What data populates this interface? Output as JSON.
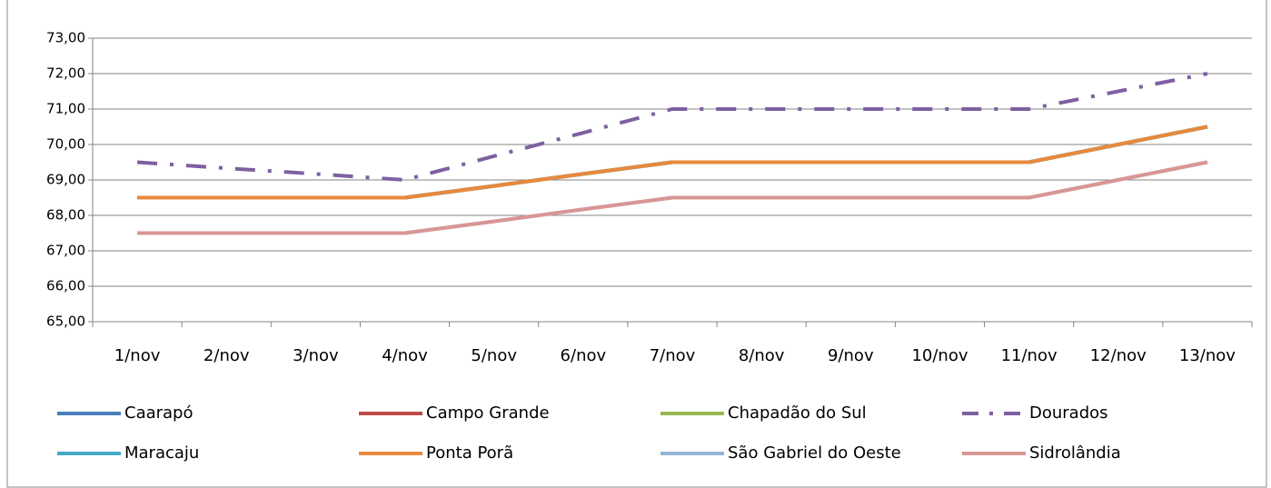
{
  "chart_data": {
    "type": "line",
    "categories": [
      "1/nov",
      "2/nov",
      "3/nov",
      "4/nov",
      "5/nov",
      "6/nov",
      "7/nov",
      "8/nov",
      "9/nov",
      "10/nov",
      "11/nov",
      "12/nov",
      "13/nov"
    ],
    "series": [
      {
        "name": "Caarapó",
        "color": "#4a7ebb",
        "values": [
          68.5,
          68.5,
          68.5,
          68.5,
          68.83,
          69.17,
          69.5,
          69.5,
          69.5,
          69.5,
          69.5,
          70.0,
          70.5
        ]
      },
      {
        "name": "Campo Grande",
        "color": "#be4b48",
        "values": [
          68.5,
          68.5,
          68.5,
          68.5,
          68.83,
          69.17,
          69.5,
          69.5,
          69.5,
          69.5,
          69.5,
          70.0,
          70.5
        ]
      },
      {
        "name": "Chapadão do Sul",
        "color": "#98b954",
        "values": [
          68.5,
          68.5,
          68.5,
          68.5,
          68.83,
          69.17,
          69.5,
          69.5,
          69.5,
          69.5,
          69.5,
          70.0,
          70.5
        ]
      },
      {
        "name": "Dourados",
        "color": "#7d60a0",
        "line_style": "dash-dot",
        "values": [
          69.5,
          69.33,
          69.17,
          69.0,
          69.67,
          70.33,
          71.0,
          71.0,
          71.0,
          71.0,
          71.0,
          71.5,
          72.0
        ]
      },
      {
        "name": "Maracaju",
        "color": "#46aac5",
        "values": [
          68.5,
          68.5,
          68.5,
          68.5,
          68.83,
          69.17,
          69.5,
          69.5,
          69.5,
          69.5,
          69.5,
          70.0,
          70.5
        ]
      },
      {
        "name": "Ponta Porã",
        "color": "#e8893e",
        "values": [
          68.5,
          68.5,
          68.5,
          68.5,
          68.83,
          69.17,
          69.5,
          69.5,
          69.5,
          69.5,
          69.5,
          70.0,
          70.5
        ]
      },
      {
        "name": "São Gabriel do Oeste",
        "color": "#95b3d7",
        "values": [
          67.5,
          67.5,
          67.5,
          67.5,
          67.83,
          68.17,
          68.5,
          68.5,
          68.5,
          68.5,
          68.5,
          69.0,
          69.5
        ]
      },
      {
        "name": "Sidrolândia",
        "color": "#d99694",
        "values": [
          67.5,
          67.5,
          67.5,
          67.5,
          67.83,
          68.17,
          68.5,
          68.5,
          68.5,
          68.5,
          68.5,
          69.0,
          69.5
        ]
      }
    ],
    "ylim": [
      65,
      73
    ],
    "yticks": [
      {
        "value": 65,
        "label": "65,00"
      },
      {
        "value": 66,
        "label": "66,00"
      },
      {
        "value": 67,
        "label": "67,00"
      },
      {
        "value": 68,
        "label": "68,00"
      },
      {
        "value": 69,
        "label": "69,00"
      },
      {
        "value": 70,
        "label": "70,00"
      },
      {
        "value": 71,
        "label": "71,00"
      },
      {
        "value": 72,
        "label": "72,00"
      },
      {
        "value": 73,
        "label": "73,00"
      }
    ],
    "grid": true,
    "legend": "bottom"
  }
}
